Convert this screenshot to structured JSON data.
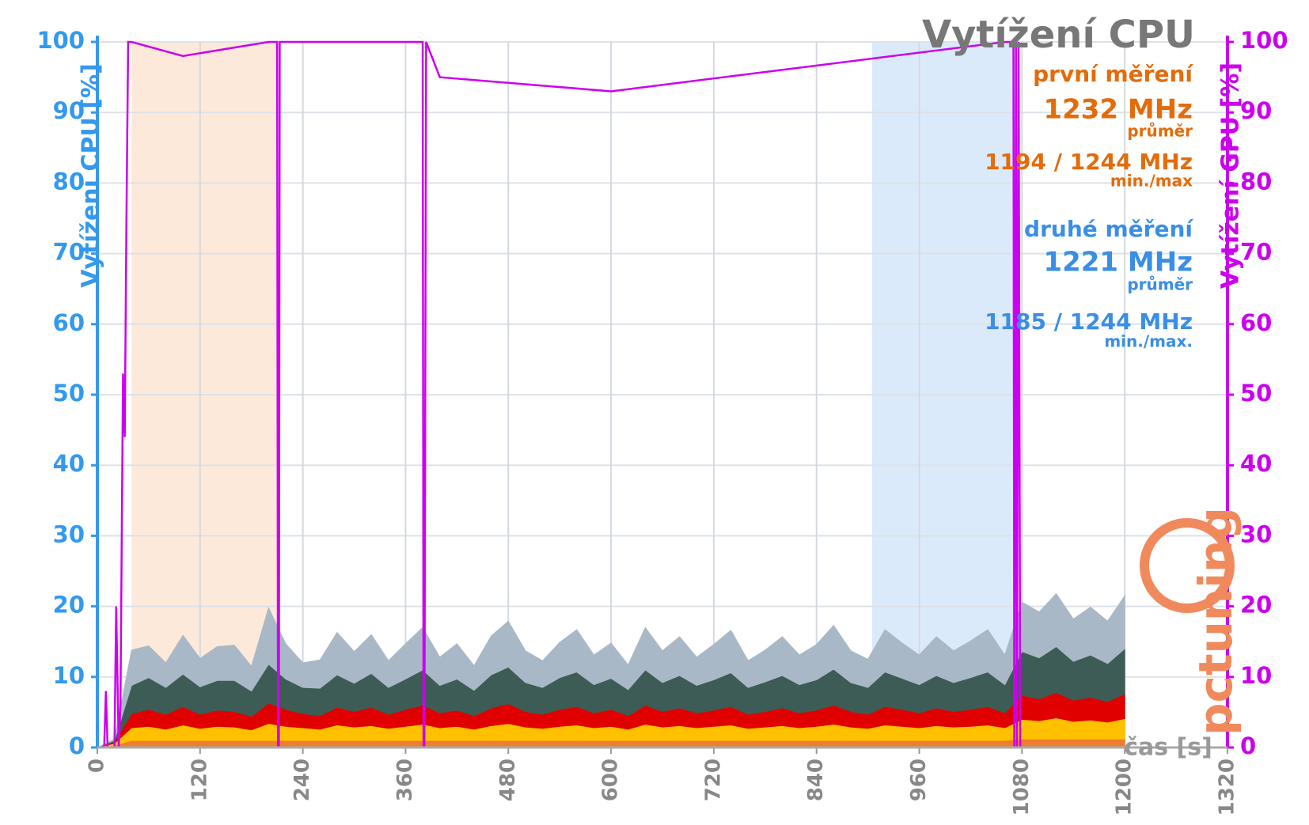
{
  "chart_data": {
    "type": "stacked-area",
    "title": "Vytížení CPU",
    "ylabel": "Vytížení CPU [%]",
    "y2label": "Vytížení GPU [%]",
    "xlabel": "čas [s]",
    "logo": "pctuning",
    "xlim": [
      0,
      1320
    ],
    "xticks": [
      0,
      120,
      240,
      360,
      480,
      600,
      720,
      840,
      960,
      1080,
      1200,
      1320
    ],
    "ylim": [
      0,
      100
    ],
    "yticks": [
      0,
      10,
      20,
      30,
      40,
      50,
      60,
      70,
      80,
      90,
      100
    ],
    "y2lim": [
      0,
      100
    ],
    "y2ticks": [
      0,
      10,
      20,
      30,
      40,
      50,
      60,
      70,
      80,
      90,
      100
    ],
    "grid": true,
    "highlights": [
      {
        "xlim": [
          40,
          210
        ],
        "color": "#fde9d9"
      },
      {
        "xlim": [
          905,
          1075
        ],
        "color": "#dbeafb"
      }
    ],
    "annotations": [
      {
        "text": "první měření",
        "color": "#e36c0a"
      },
      {
        "text": "1232 MHz",
        "color": "#e36c0a"
      },
      {
        "text": "průměr",
        "color": "#e36c0a"
      },
      {
        "text": "1194 / 1244 MHz",
        "color": "#e36c0a"
      },
      {
        "text": "min./max",
        "color": "#e36c0a"
      },
      {
        "text": "druhé měření",
        "color": "#3a8ee6"
      },
      {
        "text": "1221 MHz",
        "color": "#3a8ee6"
      },
      {
        "text": "průměr",
        "color": "#3a8ee6"
      },
      {
        "text": "1185 / 1244 MHz",
        "color": "#3a8ee6"
      },
      {
        "text": "min./max.",
        "color": "#3a8ee6"
      }
    ],
    "x": [
      0,
      20,
      40,
      60,
      80,
      100,
      120,
      140,
      160,
      180,
      200,
      220,
      240,
      260,
      280,
      300,
      320,
      340,
      360,
      380,
      400,
      420,
      440,
      460,
      480,
      500,
      520,
      540,
      560,
      580,
      600,
      620,
      640,
      660,
      680,
      700,
      720,
      740,
      760,
      780,
      800,
      820,
      840,
      860,
      880,
      900,
      920,
      940,
      960,
      980,
      1000,
      1020,
      1040,
      1060,
      1080,
      1100,
      1120,
      1140,
      1160,
      1180,
      1200
    ],
    "series": [
      {
        "color": "#ed7d31",
        "values": [
          0,
          0.3,
          1,
          1,
          1,
          1,
          1,
          1,
          1,
          1,
          1,
          1,
          1,
          1,
          1,
          1,
          1,
          1,
          1,
          1,
          1,
          1,
          1,
          1,
          1,
          1,
          1,
          1,
          1,
          1,
          1,
          1,
          1,
          1,
          1,
          1,
          1,
          1,
          1,
          1,
          1,
          1,
          1,
          1,
          1,
          1,
          1,
          1,
          1,
          1,
          1,
          1,
          1,
          1,
          1.2,
          1.2,
          1.2,
          1.2,
          1.2,
          1.2,
          1.2
        ]
      },
      {
        "color": "#ffc000",
        "values": [
          0,
          0.3,
          1.8,
          2,
          1.6,
          2.2,
          1.7,
          2,
          1.9,
          1.5,
          2.4,
          2,
          1.8,
          1.6,
          2.2,
          1.9,
          2.1,
          1.7,
          2,
          2.3,
          1.8,
          2,
          1.6,
          2.1,
          2.4,
          1.9,
          1.7,
          2,
          2.2,
          1.8,
          2,
          1.6,
          2.3,
          1.9,
          2.1,
          1.8,
          2,
          2.2,
          1.7,
          1.9,
          2.1,
          1.8,
          2,
          2.3,
          1.9,
          1.7,
          2.2,
          2,
          1.8,
          2.1,
          1.9,
          2,
          2.2,
          1.8,
          2.8,
          2.6,
          3,
          2.5,
          2.7,
          2.4,
          2.9
        ]
      },
      {
        "color": "#e00000",
        "values": [
          0,
          0.2,
          2,
          2.4,
          2.1,
          2.6,
          2,
          2.3,
          2.2,
          1.9,
          2.9,
          2.4,
          2,
          1.9,
          2.5,
          2.2,
          2.6,
          2,
          2.4,
          2.7,
          2.1,
          2.3,
          1.9,
          2.5,
          2.8,
          2.2,
          2,
          2.4,
          2.6,
          2.1,
          2.4,
          1.9,
          2.7,
          2.2,
          2.5,
          2.1,
          2.3,
          2.6,
          2,
          2.2,
          2.5,
          2.1,
          2.3,
          2.7,
          2.2,
          2,
          2.6,
          2.4,
          2.1,
          2.5,
          2.2,
          2.4,
          2.6,
          2.1,
          3.4,
          3.1,
          3.6,
          3,
          3.2,
          2.9,
          3.5
        ]
      },
      {
        "color": "#3d5c55",
        "values": [
          0,
          0.2,
          4,
          4.5,
          3.8,
          4.6,
          3.9,
          4.2,
          4.4,
          3.6,
          5.5,
          4.3,
          3.7,
          3.9,
          4.6,
          4,
          4.8,
          3.8,
          4.3,
          5,
          3.9,
          4.4,
          3.6,
          4.7,
          5.2,
          4.1,
          3.8,
          4.5,
          4.9,
          4,
          4.4,
          3.7,
          5,
          4.1,
          4.6,
          3.9,
          4.3,
          4.8,
          3.8,
          4.2,
          4.6,
          4,
          4.3,
          5.1,
          4.1,
          3.8,
          4.9,
          4.4,
          4,
          4.6,
          4.1,
          4.5,
          4.9,
          4,
          6.2,
          5.8,
          6.5,
          5.5,
          6,
          5.4,
          6.4
        ]
      },
      {
        "color": "#a9b8c6",
        "values": [
          0,
          0.2,
          5,
          4.5,
          3.5,
          5.5,
          4,
          4.8,
          5,
          3.5,
          8,
          5,
          3.5,
          4,
          6,
          4.5,
          5.5,
          3.8,
          5,
          6,
          4,
          5,
          3.5,
          5.5,
          6.5,
          4.5,
          3.8,
          5,
          6,
          4.2,
          5,
          3.5,
          6,
          4.5,
          5.5,
          4,
          5,
          6,
          3.8,
          4.5,
          5.5,
          4.2,
          5,
          6.2,
          4.5,
          4,
          6,
          5,
          4.2,
          5.5,
          4.5,
          5.2,
          6,
          4.2,
          7,
          6.5,
          7.5,
          6,
          6.8,
          6,
          7.5
        ]
      }
    ],
    "gpu": {
      "color": "#cc00ee",
      "axis": "y2",
      "x": [
        0,
        8,
        10,
        12,
        20,
        22,
        25,
        27,
        30,
        32,
        34,
        36,
        38,
        40,
        100,
        200,
        210,
        211,
        212,
        213,
        230,
        300,
        380,
        381,
        382,
        384,
        400,
        600,
        1060,
        1070,
        1071,
        1072,
        1073,
        1074,
        1076,
        1078,
        1080,
        1200
      ],
      "values": [
        0,
        0,
        8,
        0,
        0,
        20,
        0,
        6,
        53,
        44,
        75,
        100,
        100,
        100,
        98,
        100,
        100,
        0,
        0,
        100,
        100,
        100,
        100,
        0,
        0,
        100,
        95,
        93,
        100,
        100,
        0,
        50,
        100,
        0,
        100,
        0,
        0,
        0
      ]
    }
  }
}
